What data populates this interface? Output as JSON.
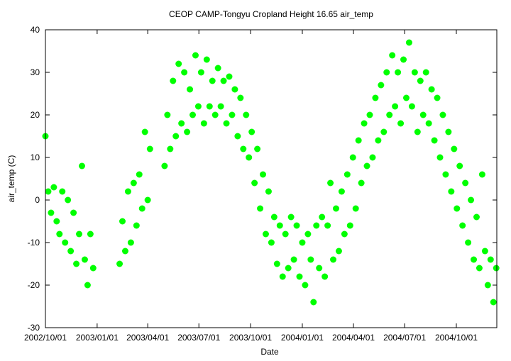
{
  "chart_data": {
    "type": "scatter",
    "title": "CEOP CAMP-Tongyu Cropland Height 16.65 air_temp",
    "xlabel": "Date",
    "ylabel": "air_temp (C)",
    "xlim": [
      "2002-10-01",
      "2004-12-12"
    ],
    "xticks": [
      {
        "value": "2002-10-01",
        "label": "2002/10/01"
      },
      {
        "value": "2003-01-01",
        "label": "2003/01/01"
      },
      {
        "value": "2003-04-01",
        "label": "2003/04/01"
      },
      {
        "value": "2003-07-01",
        "label": "2003/07/01"
      },
      {
        "value": "2003-10-01",
        "label": "2003/10/01"
      },
      {
        "value": "2004-01-01",
        "label": "2004/01/01"
      },
      {
        "value": "2004-04-01",
        "label": "2004/04/01"
      },
      {
        "value": "2004-07-01",
        "label": "2004/07/01"
      },
      {
        "value": "2004-10-01",
        "label": "2004/10/01"
      }
    ],
    "ylim": [
      -30,
      40
    ],
    "yticks": [
      -30,
      -20,
      -10,
      0,
      10,
      20,
      30,
      40
    ],
    "color": "#00ff00",
    "x": [
      "2002-10-01",
      "2002-10-06",
      "2002-10-11",
      "2002-10-16",
      "2002-10-21",
      "2002-10-26",
      "2002-10-31",
      "2002-11-05",
      "2002-11-10",
      "2002-11-15",
      "2002-11-20",
      "2002-11-25",
      "2002-11-30",
      "2002-12-05",
      "2002-12-10",
      "2002-12-15",
      "2002-12-20",
      "2002-12-25",
      "2003-02-10",
      "2003-02-15",
      "2003-02-20",
      "2003-02-25",
      "2003-03-02",
      "2003-03-07",
      "2003-03-12",
      "2003-03-17",
      "2003-03-22",
      "2003-03-27",
      "2003-04-01",
      "2003-04-05",
      "2003-05-01",
      "2003-05-06",
      "2003-05-11",
      "2003-05-16",
      "2003-05-21",
      "2003-05-26",
      "2003-05-31",
      "2003-06-05",
      "2003-06-10",
      "2003-06-15",
      "2003-06-20",
      "2003-06-25",
      "2003-06-30",
      "2003-07-05",
      "2003-07-10",
      "2003-07-15",
      "2003-07-20",
      "2003-07-25",
      "2003-07-30",
      "2003-08-04",
      "2003-08-09",
      "2003-08-14",
      "2003-08-19",
      "2003-08-24",
      "2003-08-29",
      "2003-09-03",
      "2003-09-08",
      "2003-09-13",
      "2003-09-18",
      "2003-09-23",
      "2003-09-28",
      "2003-10-03",
      "2003-10-08",
      "2003-10-13",
      "2003-10-18",
      "2003-10-23",
      "2003-10-28",
      "2003-11-02",
      "2003-11-07",
      "2003-11-12",
      "2003-11-17",
      "2003-11-22",
      "2003-11-27",
      "2003-12-02",
      "2003-12-07",
      "2003-12-12",
      "2003-12-17",
      "2003-12-22",
      "2003-12-27",
      "2004-01-01",
      "2004-01-06",
      "2004-01-11",
      "2004-01-16",
      "2004-01-21",
      "2004-01-26",
      "2004-01-31",
      "2004-02-05",
      "2004-02-10",
      "2004-02-15",
      "2004-02-20",
      "2004-02-25",
      "2004-03-01",
      "2004-03-06",
      "2004-03-11",
      "2004-03-16",
      "2004-03-21",
      "2004-03-26",
      "2004-03-31",
      "2004-04-05",
      "2004-04-10",
      "2004-04-15",
      "2004-04-20",
      "2004-04-25",
      "2004-04-30",
      "2004-05-05",
      "2004-05-10",
      "2004-05-15",
      "2004-05-20",
      "2004-05-25",
      "2004-05-30",
      "2004-06-04",
      "2004-06-09",
      "2004-06-14",
      "2004-06-19",
      "2004-06-24",
      "2004-06-29",
      "2004-07-04",
      "2004-07-09",
      "2004-07-14",
      "2004-07-19",
      "2004-07-24",
      "2004-07-29",
      "2004-08-03",
      "2004-08-08",
      "2004-08-13",
      "2004-08-18",
      "2004-08-23",
      "2004-08-28",
      "2004-09-02",
      "2004-09-07",
      "2004-09-12",
      "2004-09-17",
      "2004-09-22",
      "2004-09-27",
      "2004-10-02",
      "2004-10-07",
      "2004-10-12",
      "2004-10-17",
      "2004-10-22",
      "2004-10-27",
      "2004-11-01",
      "2004-11-06",
      "2004-11-11",
      "2004-11-16",
      "2004-11-21",
      "2004-11-26",
      "2004-12-01",
      "2004-12-06",
      "2004-12-11"
    ],
    "values": [
      15,
      2,
      -3,
      3,
      -5,
      -8,
      2,
      -10,
      0,
      -12,
      -3,
      -15,
      -8,
      8,
      -14,
      -20,
      -8,
      -16,
      -15,
      -5,
      -12,
      2,
      -10,
      4,
      -6,
      6,
      -2,
      16,
      0,
      12,
      8,
      20,
      12,
      28,
      15,
      32,
      18,
      30,
      16,
      26,
      20,
      34,
      22,
      30,
      18,
      33,
      22,
      28,
      20,
      31,
      22,
      28,
      18,
      29,
      20,
      26,
      15,
      24,
      12,
      20,
      10,
      16,
      4,
      12,
      -2,
      6,
      -8,
      2,
      -10,
      -4,
      -15,
      -6,
      -18,
      -8,
      -16,
      -4,
      -14,
      -6,
      -18,
      -10,
      -20,
      -8,
      -14,
      -24,
      -6,
      -16,
      -4,
      -18,
      -6,
      4,
      -14,
      -2,
      -12,
      2,
      -8,
      6,
      -6,
      10,
      -2,
      14,
      4,
      18,
      8,
      20,
      10,
      24,
      14,
      27,
      16,
      30,
      20,
      34,
      22,
      30,
      18,
      33,
      24,
      37,
      22,
      30,
      16,
      28,
      20,
      30,
      18,
      26,
      14,
      24,
      10,
      20,
      6,
      16,
      2,
      12,
      -2,
      8,
      -6,
      4,
      -10,
      0,
      -14,
      -4,
      -16,
      6,
      -12,
      -20,
      -14,
      -24,
      -16
    ]
  }
}
